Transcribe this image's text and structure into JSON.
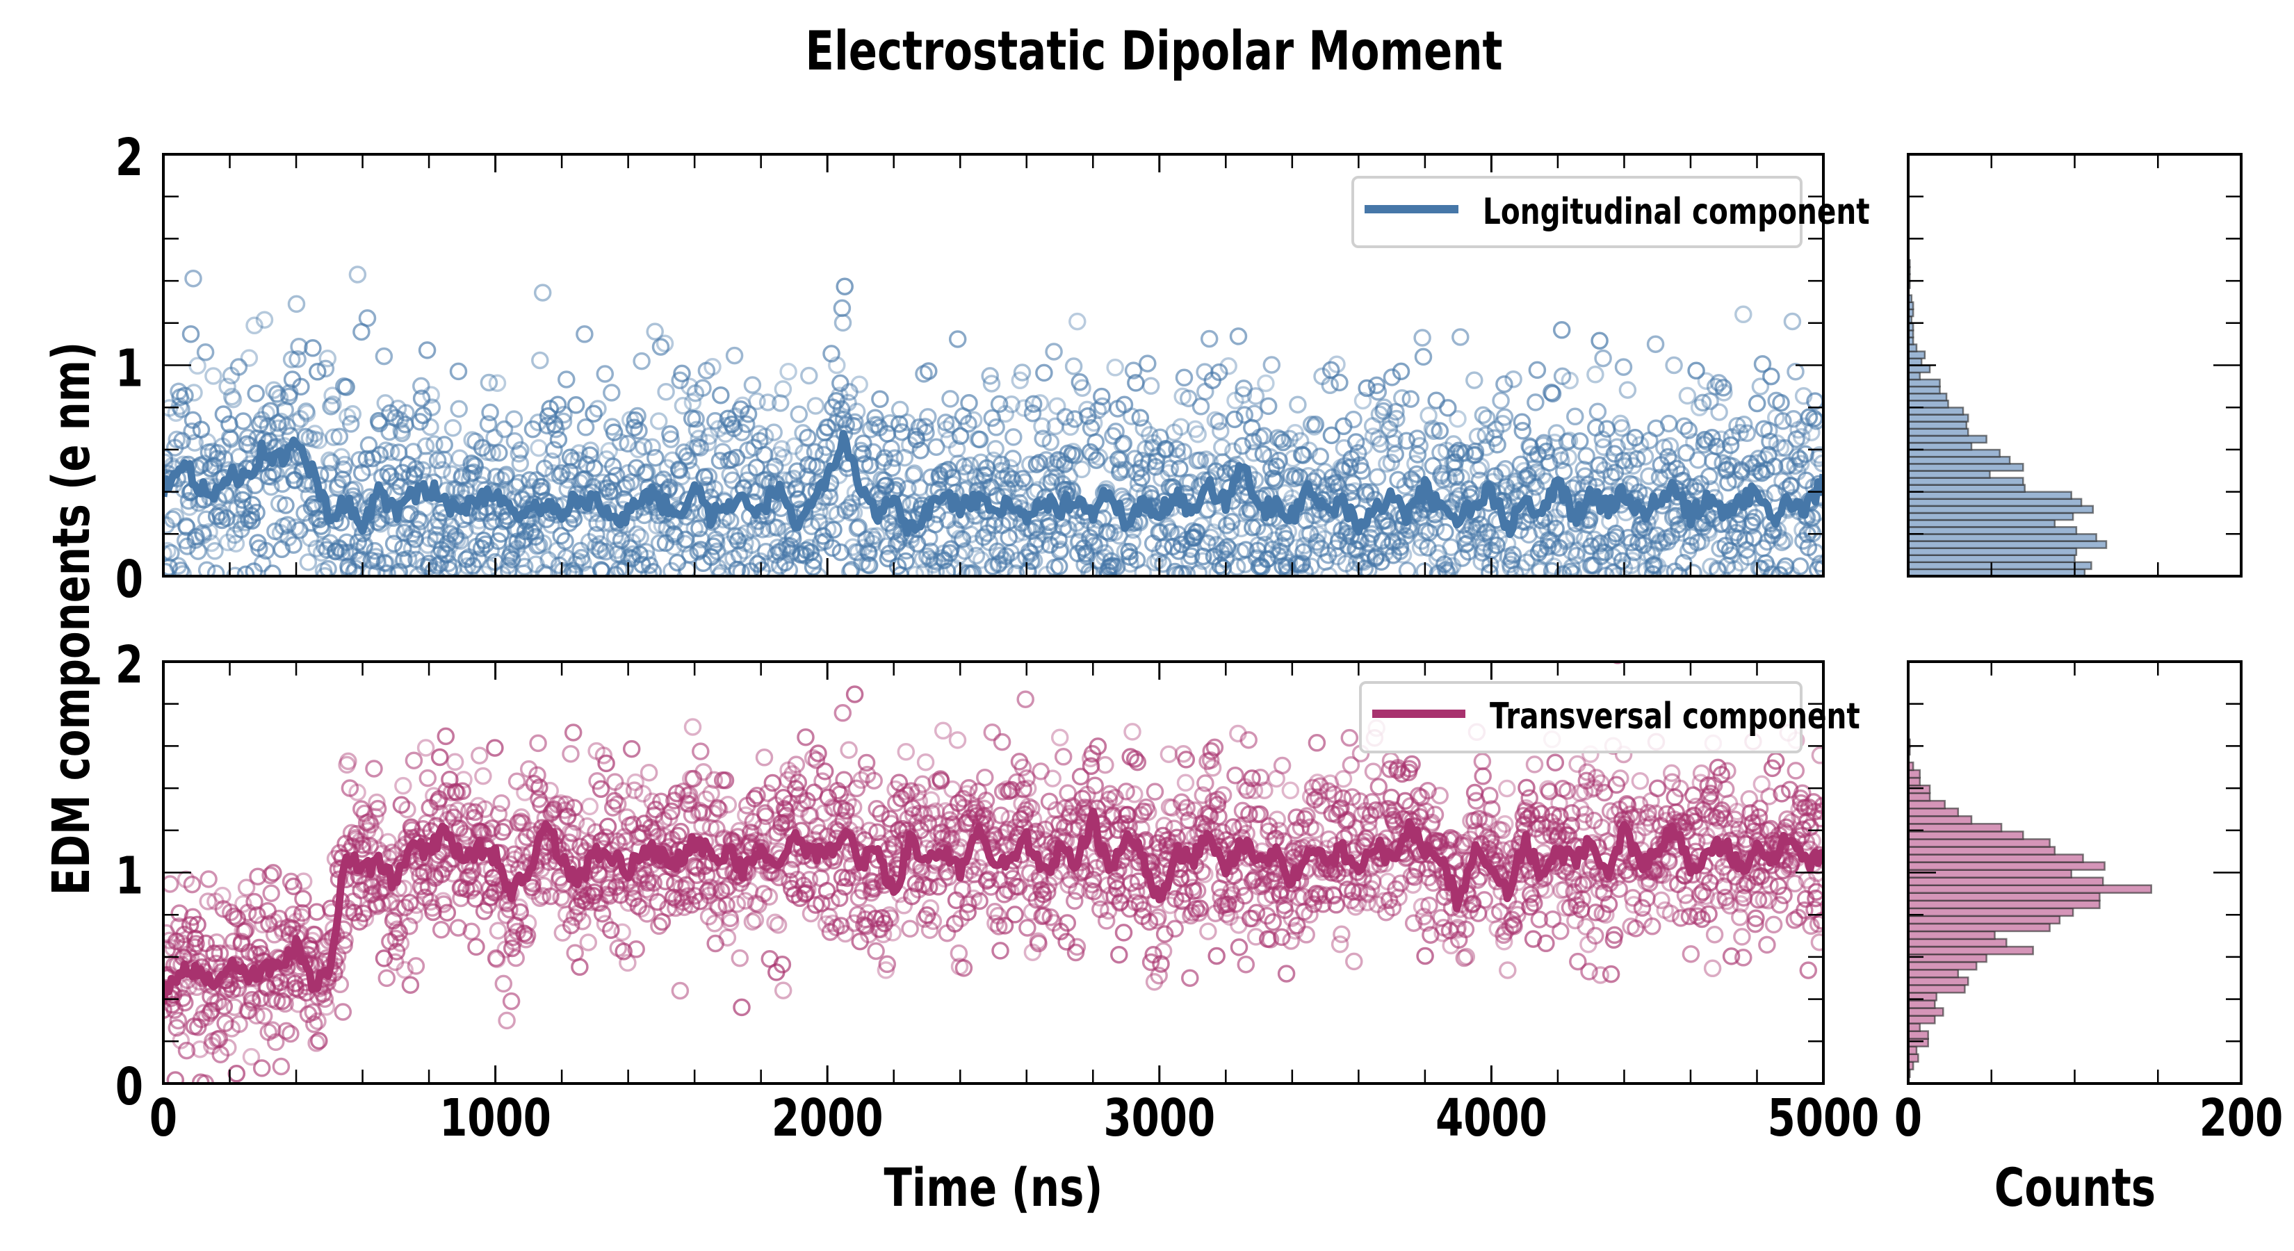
{
  "chart_data": [
    {
      "type": "line+scatter",
      "panel": "top",
      "series_name": "Longitudinal component",
      "color": "#4677a8",
      "xlabel": "",
      "ylabel": "EDM components (e nm)",
      "xlim": [
        0,
        5000
      ],
      "ylim": [
        0,
        2
      ],
      "x_major_ticks": [
        0,
        1000,
        2000,
        3000,
        4000,
        5000
      ],
      "x_minor_step": 200,
      "y_ticks": [
        0,
        1,
        2
      ],
      "y_minor_step": 0.2,
      "legend_position": "top-right",
      "running_mean": {
        "x": [
          0,
          50,
          100,
          150,
          200,
          250,
          300,
          350,
          400,
          450,
          500,
          550,
          600,
          650,
          700,
          750,
          800,
          850,
          900,
          950,
          1000,
          1050,
          1100,
          1150,
          1200,
          1250,
          1300,
          1350,
          1400,
          1450,
          1500,
          1550,
          1600,
          1650,
          1700,
          1750,
          1800,
          1850,
          1900,
          1950,
          2000,
          2050,
          2100,
          2150,
          2200,
          2250,
          2300,
          2350,
          2400,
          2450,
          2500,
          2550,
          2600,
          2650,
          2700,
          2750,
          2800,
          2850,
          2900,
          2950,
          3000,
          3050,
          3100,
          3150,
          3200,
          3250,
          3300,
          3350,
          3400,
          3450,
          3500,
          3550,
          3600,
          3650,
          3700,
          3750,
          3800,
          3850,
          3900,
          3950,
          4000,
          4050,
          4100,
          4150,
          4200,
          4250,
          4300,
          4350,
          4400,
          4450,
          4500,
          4550,
          4600,
          4650,
          4700,
          4750,
          4800,
          4850,
          4900,
          4950,
          5000
        ],
        "y": [
          0.4,
          0.55,
          0.45,
          0.35,
          0.5,
          0.45,
          0.6,
          0.55,
          0.62,
          0.5,
          0.28,
          0.35,
          0.25,
          0.4,
          0.3,
          0.38,
          0.42,
          0.35,
          0.3,
          0.38,
          0.4,
          0.32,
          0.28,
          0.35,
          0.3,
          0.38,
          0.35,
          0.25,
          0.3,
          0.4,
          0.35,
          0.3,
          0.42,
          0.28,
          0.35,
          0.38,
          0.3,
          0.42,
          0.25,
          0.35,
          0.45,
          0.65,
          0.4,
          0.3,
          0.35,
          0.2,
          0.3,
          0.38,
          0.32,
          0.35,
          0.3,
          0.36,
          0.3,
          0.35,
          0.32,
          0.38,
          0.3,
          0.4,
          0.25,
          0.35,
          0.3,
          0.38,
          0.28,
          0.42,
          0.35,
          0.55,
          0.3,
          0.35,
          0.28,
          0.4,
          0.3,
          0.35,
          0.25,
          0.32,
          0.38,
          0.28,
          0.42,
          0.3,
          0.25,
          0.35,
          0.4,
          0.22,
          0.35,
          0.3,
          0.45,
          0.28,
          0.38,
          0.32,
          0.4,
          0.3,
          0.35,
          0.42,
          0.28,
          0.38,
          0.3,
          0.35,
          0.4,
          0.28,
          0.35,
          0.32,
          0.45
        ]
      },
      "scatter_model": {
        "n_points": 2500,
        "seed": 11,
        "distribution": "half-normal around running mean",
        "spread": 0.28
      },
      "histogram": {
        "orientation": "horizontal",
        "xlabel": "Counts",
        "xlim": [
          0,
          200
        ],
        "x_ticks": [
          0,
          200
        ],
        "x_minor_step": 50,
        "bin_width": 0.0333,
        "bin_start": 0,
        "counts": [
          106,
          110,
          100,
          101,
          119,
          113,
          101,
          88,
          99,
          111,
          104,
          98,
          70,
          69,
          49,
          69,
          61,
          55,
          38,
          47,
          36,
          35,
          36,
          33,
          24,
          23,
          19,
          19,
          7,
          13,
          8,
          10,
          5,
          3,
          3,
          3,
          2,
          3,
          3,
          2,
          0,
          1,
          1,
          1,
          1
        ]
      }
    },
    {
      "type": "line+scatter",
      "panel": "bottom",
      "series_name": "Transversal component",
      "color": "#a8326e",
      "xlabel": "Time (ns)",
      "ylabel": "EDM components (e nm)",
      "xlim": [
        0,
        5000
      ],
      "ylim": [
        0,
        2
      ],
      "x_major_ticks": [
        0,
        1000,
        2000,
        3000,
        4000,
        5000
      ],
      "x_minor_step": 200,
      "y_ticks": [
        0,
        1,
        2
      ],
      "y_minor_step": 0.2,
      "legend_position": "top-right",
      "running_mean": {
        "x": [
          0,
          50,
          100,
          150,
          200,
          250,
          300,
          350,
          400,
          450,
          500,
          550,
          600,
          650,
          700,
          750,
          800,
          850,
          900,
          950,
          1000,
          1050,
          1100,
          1150,
          1200,
          1250,
          1300,
          1350,
          1400,
          1450,
          1500,
          1550,
          1600,
          1650,
          1700,
          1750,
          1800,
          1850,
          1900,
          1950,
          2000,
          2050,
          2100,
          2150,
          2200,
          2250,
          2300,
          2350,
          2400,
          2450,
          2500,
          2550,
          2600,
          2650,
          2700,
          2750,
          2800,
          2850,
          2900,
          2950,
          3000,
          3050,
          3100,
          3150,
          3200,
          3250,
          3300,
          3350,
          3400,
          3450,
          3500,
          3550,
          3600,
          3650,
          3700,
          3750,
          3800,
          3850,
          3900,
          3950,
          4000,
          4050,
          4100,
          4150,
          4200,
          4250,
          4300,
          4350,
          4400,
          4450,
          4500,
          4550,
          4600,
          4650,
          4700,
          4750,
          4800,
          4850,
          4900,
          4950,
          5000
        ],
        "y": [
          0.4,
          0.55,
          0.52,
          0.48,
          0.55,
          0.5,
          0.52,
          0.58,
          0.65,
          0.45,
          0.55,
          1.1,
          1.0,
          1.05,
          0.95,
          1.15,
          1.1,
          1.2,
          1.05,
          1.12,
          1.08,
          0.9,
          1.0,
          1.25,
          1.05,
          0.95,
          1.1,
          1.08,
          1.0,
          1.12,
          1.1,
          1.05,
          1.15,
          1.08,
          1.1,
          1.0,
          1.12,
          1.05,
          1.15,
          1.1,
          1.08,
          1.2,
          1.05,
          1.1,
          0.9,
          1.15,
          1.05,
          1.1,
          1.0,
          1.2,
          1.08,
          1.05,
          1.15,
          1.0,
          1.1,
          1.05,
          1.25,
          1.0,
          1.15,
          1.08,
          0.85,
          1.1,
          1.05,
          1.2,
          1.0,
          1.15,
          1.05,
          1.1,
          0.95,
          1.12,
          1.05,
          1.1,
          1.0,
          1.15,
          1.05,
          1.22,
          1.1,
          1.05,
          0.85,
          1.1,
          1.05,
          0.9,
          1.15,
          1.0,
          1.1,
          1.05,
          1.15,
          1.0,
          1.2,
          1.05,
          1.1,
          1.22,
          1.0,
          1.08,
          1.15,
          1.0,
          1.1,
          1.05,
          1.2,
          1.05,
          1.1
        ]
      },
      "scatter_model": {
        "n_points": 2500,
        "seed": 23,
        "distribution": "normal around running mean",
        "spread": 0.22
      },
      "histogram": {
        "orientation": "horizontal",
        "xlabel": "Counts",
        "xlim": [
          0,
          200
        ],
        "x_ticks": [
          0,
          200
        ],
        "x_minor_step": 50,
        "bin_width": 0.0364,
        "bin_start": 0.03,
        "counts": [
          1,
          3,
          6,
          5,
          12,
          12,
          7,
          16,
          21,
          16,
          17,
          34,
          36,
          30,
          41,
          47,
          75,
          59,
          52,
          85,
          91,
          99,
          115,
          115,
          146,
          117,
          98,
          118,
          105,
          88,
          85,
          69,
          56,
          38,
          30,
          22,
          13,
          13,
          7,
          7,
          3,
          0,
          1,
          1
        ]
      }
    }
  ],
  "figure": {
    "title": "Electrostatic Dipolar Moment",
    "ylabel": "EDM components (e nm)",
    "xlabel_main": "Time (ns)",
    "xlabel_hist": "Counts",
    "x_tick_labels": [
      "0",
      "1000",
      "2000",
      "3000",
      "4000",
      "5000"
    ],
    "y_tick_labels": [
      "0",
      "1",
      "2"
    ],
    "hist_tick_labels": [
      "0",
      "200"
    ],
    "legend_top": "Longitudinal component",
    "legend_bottom": "Transversal component"
  }
}
